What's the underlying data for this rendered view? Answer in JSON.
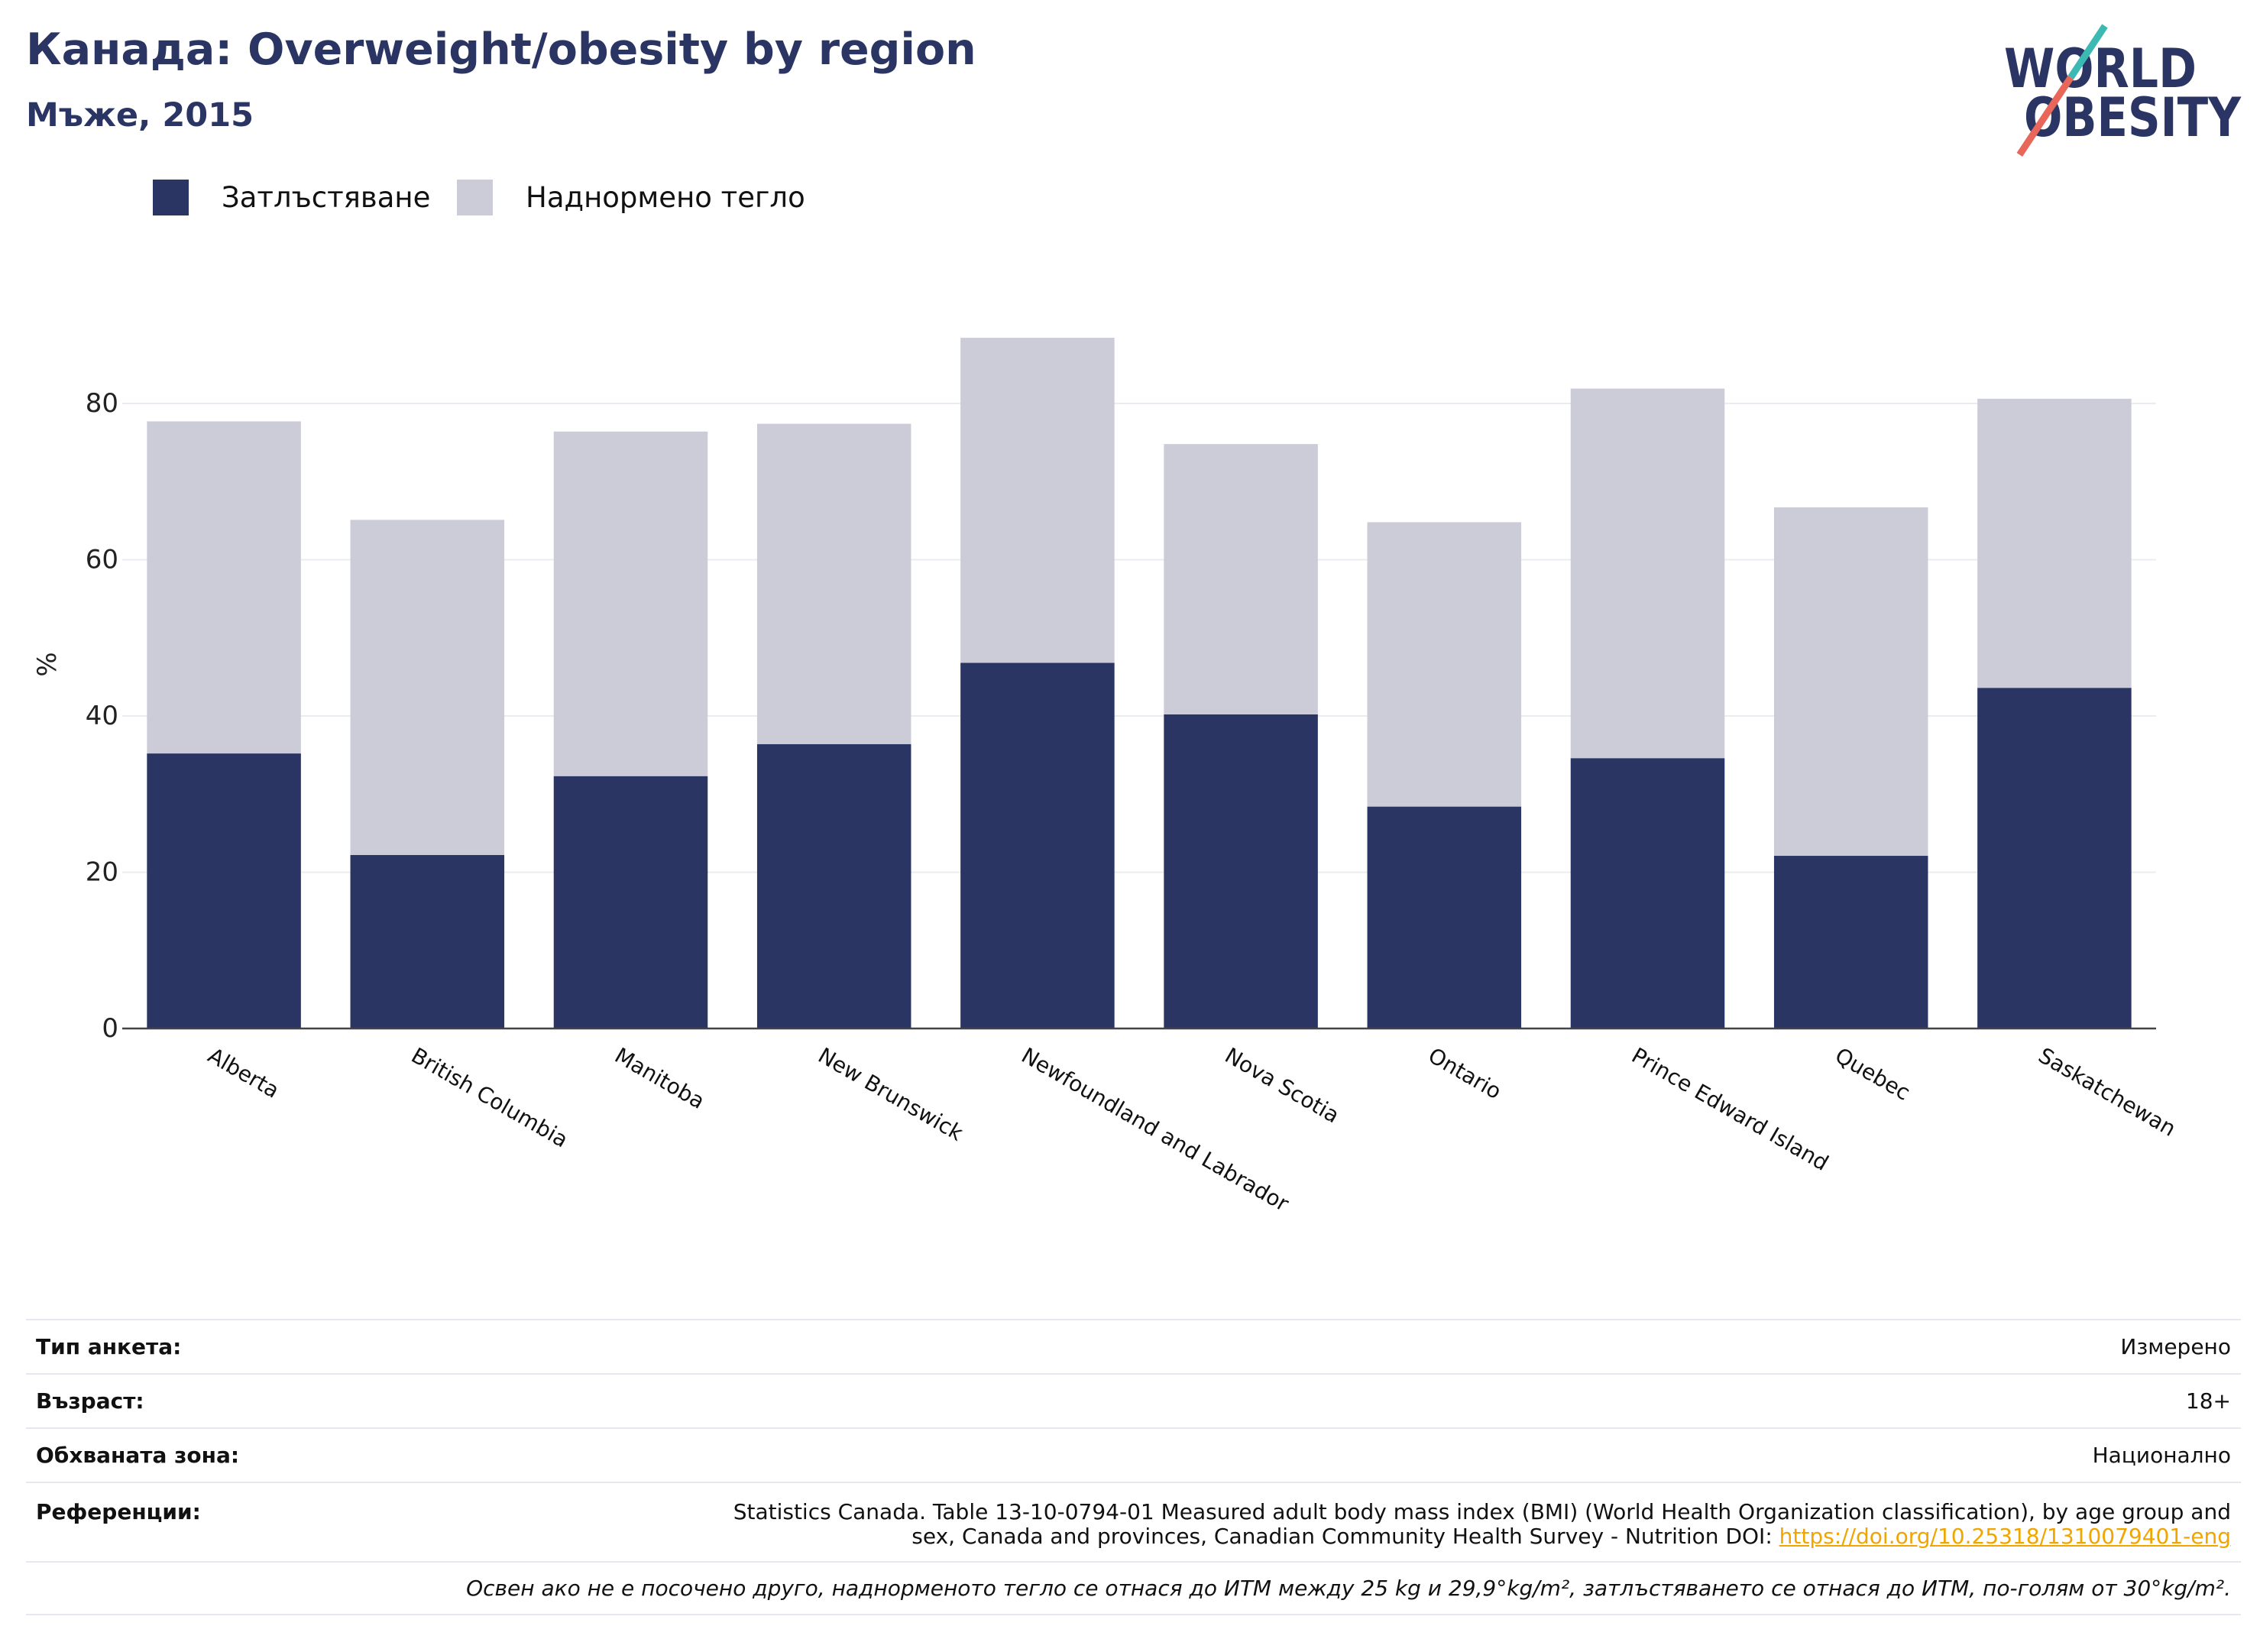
{
  "colors": {
    "brand_navy": "#2a3563",
    "link": "#f0a500",
    "logo_teal": "#3cb9b2",
    "logo_coral": "#e8675a"
  },
  "logo": {
    "line1": "WORLD",
    "line2": "OBESITY"
  },
  "chart_data": {
    "type": "bar",
    "barmode": "stack",
    "title": "Канада: Overweight/obesity by region",
    "subtitle": "Мъже, 2015",
    "xlabel": "",
    "ylabel": "%",
    "categories": [
      "Alberta",
      "British Columbia",
      "Manitoba",
      "New Brunswick",
      "Newfoundland and Labrador",
      "Nova Scotia",
      "Ontario",
      "Prince Edward Island",
      "Quebec",
      "Saskatchewan"
    ],
    "series": [
      {
        "name": "Затлъстяване",
        "color": "#2a3563",
        "values": [
          35.2,
          22.2,
          32.3,
          36.4,
          46.8,
          40.2,
          28.4,
          34.6,
          22.1,
          43.6
        ]
      },
      {
        "name": "Наднормено тегло",
        "color": "#cbccd8",
        "values": [
          42.5,
          42.9,
          44.1,
          41.0,
          41.6,
          34.6,
          36.4,
          47.3,
          44.6,
          37.0
        ]
      }
    ],
    "yticks": [
      0,
      20,
      40,
      60,
      80
    ],
    "ylim": [
      0,
      93.2
    ],
    "grid": true,
    "legend_position": "top-left"
  },
  "info_table": {
    "rows": [
      {
        "label": "Тип анкета:",
        "value": "Измерено"
      },
      {
        "label": "Възраст:",
        "value": "18+"
      },
      {
        "label": "Обхваната зона:",
        "value": "Национално"
      }
    ],
    "references": {
      "label": "Референции:",
      "lines": [
        "Statistics Canada. Table 13-10-0794-01 Measured adult body mass index (BMI) (World Health Organization classification), by age group and",
        "sex, Canada and provinces, Canadian Community Health Survey - Nutrition DOI:"
      ],
      "link": "https://doi.org/10.25318/1310079401-eng"
    },
    "footnote": "Освен ако не е посочено друго, наднорменото тегло се отнася до ИТМ между 25 kg и 29,9°kg/m², затлъстяването се отнася до ИТМ, по-голям от 30°kg/m²."
  }
}
